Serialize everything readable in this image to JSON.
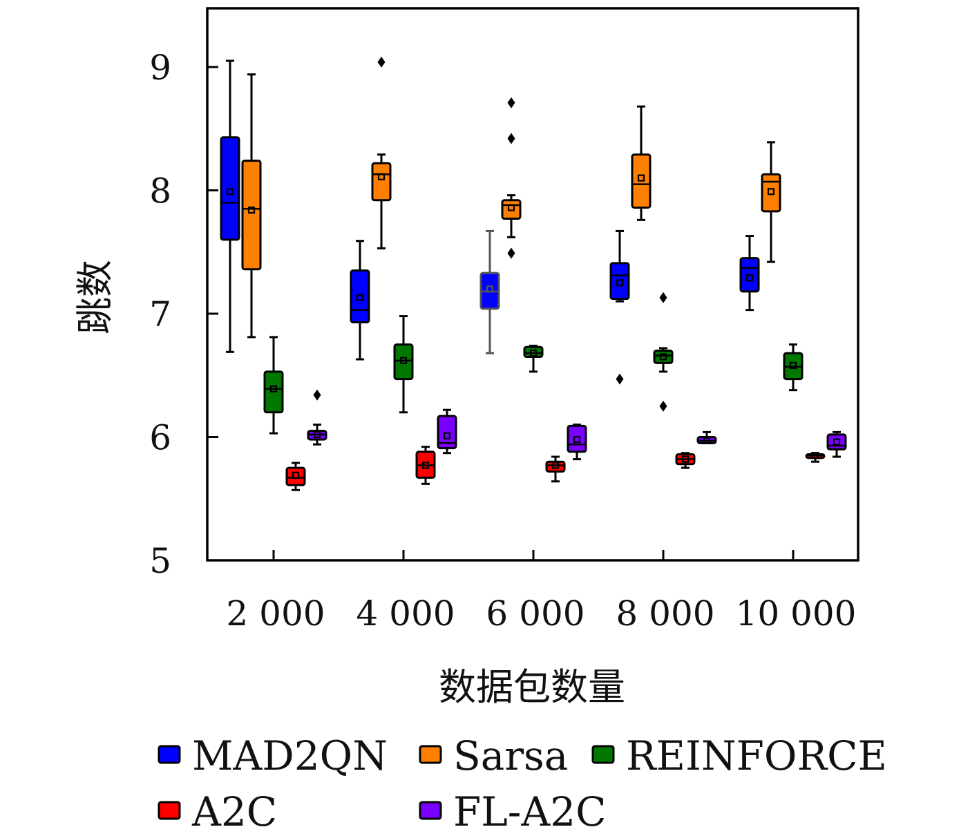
{
  "chart_data": {
    "type": "box",
    "xlabel": "数据包数量",
    "ylabel": "跳数",
    "ylim": [
      5,
      9.5
    ],
    "yticks": [
      5,
      6,
      7,
      8,
      9
    ],
    "categories": [
      "2 000",
      "4 000",
      "6 000",
      "8 000",
      "10 000"
    ],
    "grid": false,
    "legend_position": "bottom",
    "series": [
      {
        "name": "MAD2QN",
        "color": "#0000ff",
        "boxes": [
          {
            "min": 6.69,
            "q1": 7.6,
            "median": 7.9,
            "q3": 8.43,
            "max": 9.05,
            "mean": 7.99,
            "outliers": []
          },
          {
            "min": 6.63,
            "q1": 6.93,
            "median": 7.03,
            "q3": 7.35,
            "max": 7.59,
            "mean": 7.13,
            "outliers": []
          },
          {
            "min": 6.68,
            "q1": 7.04,
            "median": 7.18,
            "q3": 7.33,
            "max": 7.67,
            "mean": 7.2,
            "outliers": []
          },
          {
            "min": 7.1,
            "q1": 7.12,
            "median": 7.31,
            "q3": 7.41,
            "max": 7.67,
            "mean": 7.25,
            "outliers": [
              6.47
            ]
          },
          {
            "min": 7.03,
            "q1": 7.18,
            "median": 7.37,
            "q3": 7.45,
            "max": 7.63,
            "mean": 7.29,
            "outliers": []
          }
        ]
      },
      {
        "name": "Sarsa",
        "color": "#ff8000",
        "boxes": [
          {
            "min": 6.81,
            "q1": 7.36,
            "median": 7.85,
            "q3": 8.24,
            "max": 8.94,
            "mean": 7.84,
            "outliers": []
          },
          {
            "min": 7.53,
            "q1": 7.92,
            "median": 8.13,
            "q3": 8.22,
            "max": 8.29,
            "mean": 8.11,
            "outliers": [
              9.04
            ]
          },
          {
            "min": 7.62,
            "q1": 7.77,
            "median": 7.88,
            "q3": 7.92,
            "max": 7.96,
            "mean": 7.86,
            "outliers": [
              8.71,
              8.42,
              7.49
            ]
          },
          {
            "min": 7.76,
            "q1": 7.86,
            "median": 8.05,
            "q3": 8.29,
            "max": 8.68,
            "mean": 8.1,
            "outliers": []
          },
          {
            "min": 7.42,
            "q1": 7.83,
            "median": 8.07,
            "q3": 8.13,
            "max": 8.39,
            "mean": 7.99,
            "outliers": []
          }
        ]
      },
      {
        "name": "REINFORCE",
        "color": "#007800",
        "boxes": [
          {
            "min": 6.03,
            "q1": 6.2,
            "median": 6.39,
            "q3": 6.53,
            "max": 6.81,
            "mean": 6.39,
            "outliers": []
          },
          {
            "min": 6.2,
            "q1": 6.47,
            "median": 6.62,
            "q3": 6.75,
            "max": 6.98,
            "mean": 6.62,
            "outliers": []
          },
          {
            "min": 6.53,
            "q1": 6.65,
            "median": 6.68,
            "q3": 6.73,
            "max": 6.74,
            "mean": 6.68,
            "outliers": []
          },
          {
            "min": 6.53,
            "q1": 6.6,
            "median": 6.66,
            "q3": 6.7,
            "max": 6.72,
            "mean": 6.65,
            "outliers": [
              7.13,
              6.25
            ]
          },
          {
            "min": 6.38,
            "q1": 6.47,
            "median": 6.57,
            "q3": 6.68,
            "max": 6.75,
            "mean": 6.58,
            "outliers": []
          }
        ]
      },
      {
        "name": "A2C",
        "color": "#ff0000",
        "boxes": [
          {
            "min": 5.57,
            "q1": 5.61,
            "median": 5.67,
            "q3": 5.75,
            "max": 5.79,
            "mean": 5.69,
            "outliers": []
          },
          {
            "min": 5.62,
            "q1": 5.67,
            "median": 5.77,
            "q3": 5.88,
            "max": 5.92,
            "mean": 5.77,
            "outliers": []
          },
          {
            "min": 5.64,
            "q1": 5.72,
            "median": 5.77,
            "q3": 5.8,
            "max": 5.84,
            "mean": 5.77,
            "outliers": []
          },
          {
            "min": 5.75,
            "q1": 5.78,
            "median": 5.82,
            "q3": 5.86,
            "max": 5.87,
            "mean": 5.82,
            "outliers": []
          },
          {
            "min": 5.8,
            "q1": 5.83,
            "median": 5.85,
            "q3": 5.86,
            "max": 5.87,
            "mean": 5.85,
            "outliers": []
          }
        ]
      },
      {
        "name": "FL-A2C",
        "color": "#7a00ff",
        "boxes": [
          {
            "min": 5.94,
            "q1": 5.98,
            "median": 6.02,
            "q3": 6.05,
            "max": 6.1,
            "mean": 6.02,
            "outliers": [
              6.34
            ]
          },
          {
            "min": 5.87,
            "q1": 5.91,
            "median": 5.95,
            "q3": 6.17,
            "max": 6.22,
            "mean": 6.01,
            "outliers": []
          },
          {
            "min": 5.82,
            "q1": 5.88,
            "median": 5.94,
            "q3": 6.09,
            "max": 6.1,
            "mean": 5.98,
            "outliers": []
          },
          {
            "min": 5.95,
            "q1": 5.95,
            "median": 5.97,
            "q3": 6.0,
            "max": 6.04,
            "mean": 5.97,
            "outliers": []
          },
          {
            "min": 5.84,
            "q1": 5.9,
            "median": 5.93,
            "q3": 6.02,
            "max": 6.04,
            "mean": 5.96,
            "outliers": []
          }
        ]
      }
    ]
  }
}
